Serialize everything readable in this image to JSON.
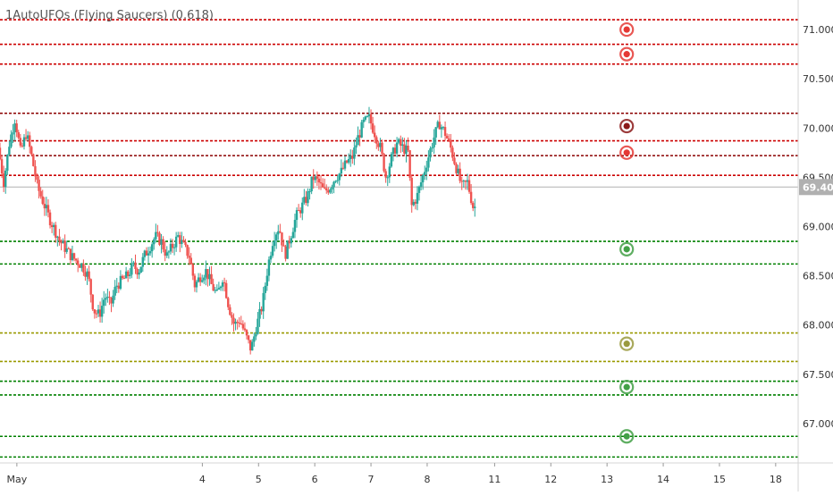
{
  "chart_data": {
    "type": "candlestick",
    "indicator_label": "1AutoUFOs (Flying Saucers) (0.618)",
    "last_price_label": "69.401",
    "last_price": 69.401,
    "ylim": [
      66.6,
      71.3
    ],
    "y_ticks": [
      "71.000",
      "70.500",
      "70.000",
      "69.500",
      "69.000",
      "68.500",
      "68.000",
      "67.500",
      "67.000"
    ],
    "y_tick_values": [
      71.0,
      70.5,
      70.0,
      69.5,
      69.0,
      68.5,
      68.0,
      67.5,
      67.0
    ],
    "x_ticks": [
      "May",
      "4",
      "5",
      "6",
      "7",
      "8",
      "11",
      "12",
      "13",
      "14",
      "15",
      "18"
    ],
    "x_tick_positions": [
      0.7,
      4,
      5,
      6,
      7,
      8,
      9.2,
      10.2,
      11.2,
      12.2,
      13.2,
      14.2
    ],
    "xlim": [
      0.4,
      14.6
    ],
    "colors": {
      "up": "#26a69a",
      "down": "#ef5350",
      "resistance": "#cc0000",
      "resistance_dark": "#8b0000",
      "support": "#008000",
      "neutral": "#9a9a00",
      "axis_text": "#333333",
      "price_line": "#b0b0b0"
    },
    "levels": [
      {
        "price": 71.1,
        "color": "#cc0000"
      },
      {
        "price": 70.85,
        "color": "#cc0000"
      },
      {
        "price": 70.65,
        "color": "#cc0000"
      },
      {
        "price": 70.15,
        "color": "#8b0000"
      },
      {
        "price": 69.87,
        "color": "#cc0000"
      },
      {
        "price": 69.72,
        "color": "#8b0000"
      },
      {
        "price": 69.52,
        "color": "#cc0000"
      },
      {
        "price": 68.85,
        "color": "#008000"
      },
      {
        "price": 68.62,
        "color": "#008000"
      },
      {
        "price": 67.92,
        "color": "#9a9a00"
      },
      {
        "price": 67.63,
        "color": "#9a9a00"
      },
      {
        "price": 67.43,
        "color": "#008000"
      },
      {
        "price": 67.29,
        "color": "#008000"
      },
      {
        "price": 66.87,
        "color": "#008000"
      },
      {
        "price": 66.66,
        "color": "#008000"
      }
    ],
    "saucers": [
      {
        "price": 71.0,
        "color": "#e53935"
      },
      {
        "price": 70.75,
        "color": "#e53935"
      },
      {
        "price": 70.02,
        "color": "#8b1a1a"
      },
      {
        "price": 69.75,
        "color": "#e53935"
      },
      {
        "price": 68.77,
        "color": "#43a047"
      },
      {
        "price": 67.81,
        "color": "#9a9a40"
      },
      {
        "price": 67.37,
        "color": "#43a047"
      },
      {
        "price": 66.87,
        "color": "#43a047"
      }
    ],
    "saucer_x": 11.55,
    "series_path": [
      [
        0.4,
        69.8
      ],
      [
        0.5,
        69.45
      ],
      [
        0.6,
        69.85
      ],
      [
        0.7,
        70.1
      ],
      [
        0.8,
        69.75
      ],
      [
        0.9,
        69.95
      ],
      [
        1.0,
        69.7
      ],
      [
        1.1,
        69.4
      ],
      [
        1.3,
        69.1
      ],
      [
        1.5,
        68.85
      ],
      [
        1.7,
        68.7
      ],
      [
        1.9,
        68.6
      ],
      [
        2.0,
        68.5
      ],
      [
        2.1,
        68.15
      ],
      [
        2.2,
        68.1
      ],
      [
        2.3,
        68.3
      ],
      [
        2.4,
        68.2
      ],
      [
        2.5,
        68.4
      ],
      [
        2.6,
        68.45
      ],
      [
        2.7,
        68.5
      ],
      [
        2.8,
        68.6
      ],
      [
        2.9,
        68.55
      ],
      [
        3.0,
        68.7
      ],
      [
        3.1,
        68.8
      ],
      [
        3.2,
        68.9
      ],
      [
        3.3,
        68.85
      ],
      [
        3.4,
        68.7
      ],
      [
        3.5,
        68.8
      ],
      [
        3.6,
        68.9
      ],
      [
        3.7,
        68.8
      ],
      [
        3.8,
        68.7
      ],
      [
        3.9,
        68.4
      ],
      [
        4.0,
        68.5
      ],
      [
        4.1,
        68.55
      ],
      [
        4.2,
        68.4
      ],
      [
        4.3,
        68.3
      ],
      [
        4.4,
        68.5
      ],
      [
        4.5,
        68.2
      ],
      [
        4.6,
        68.0
      ],
      [
        4.7,
        68.05
      ],
      [
        4.8,
        67.9
      ],
      [
        4.9,
        67.75
      ],
      [
        5.0,
        68.0
      ],
      [
        5.1,
        68.2
      ],
      [
        5.2,
        68.6
      ],
      [
        5.3,
        68.9
      ],
      [
        5.4,
        69.0
      ],
      [
        5.5,
        68.7
      ],
      [
        5.6,
        68.9
      ],
      [
        5.7,
        69.1
      ],
      [
        5.8,
        69.2
      ],
      [
        5.9,
        69.3
      ],
      [
        6.0,
        69.5
      ],
      [
        6.1,
        69.45
      ],
      [
        6.2,
        69.35
      ],
      [
        6.3,
        69.4
      ],
      [
        6.4,
        69.5
      ],
      [
        6.5,
        69.55
      ],
      [
        6.6,
        69.65
      ],
      [
        6.7,
        69.7
      ],
      [
        6.8,
        69.9
      ],
      [
        6.9,
        70.05
      ],
      [
        7.0,
        70.1
      ],
      [
        7.1,
        69.95
      ],
      [
        7.2,
        69.8
      ],
      [
        7.3,
        69.5
      ],
      [
        7.4,
        69.7
      ],
      [
        7.5,
        69.85
      ],
      [
        7.6,
        69.8
      ],
      [
        7.7,
        69.75
      ],
      [
        7.75,
        69.2
      ],
      [
        7.85,
        69.3
      ],
      [
        7.95,
        69.5
      ],
      [
        8.05,
        69.7
      ],
      [
        8.15,
        69.9
      ],
      [
        8.25,
        70.05
      ],
      [
        8.35,
        69.95
      ],
      [
        8.45,
        69.8
      ],
      [
        8.55,
        69.6
      ],
      [
        8.65,
        69.4
      ],
      [
        8.75,
        69.45
      ],
      [
        8.85,
        69.2
      ]
    ]
  }
}
